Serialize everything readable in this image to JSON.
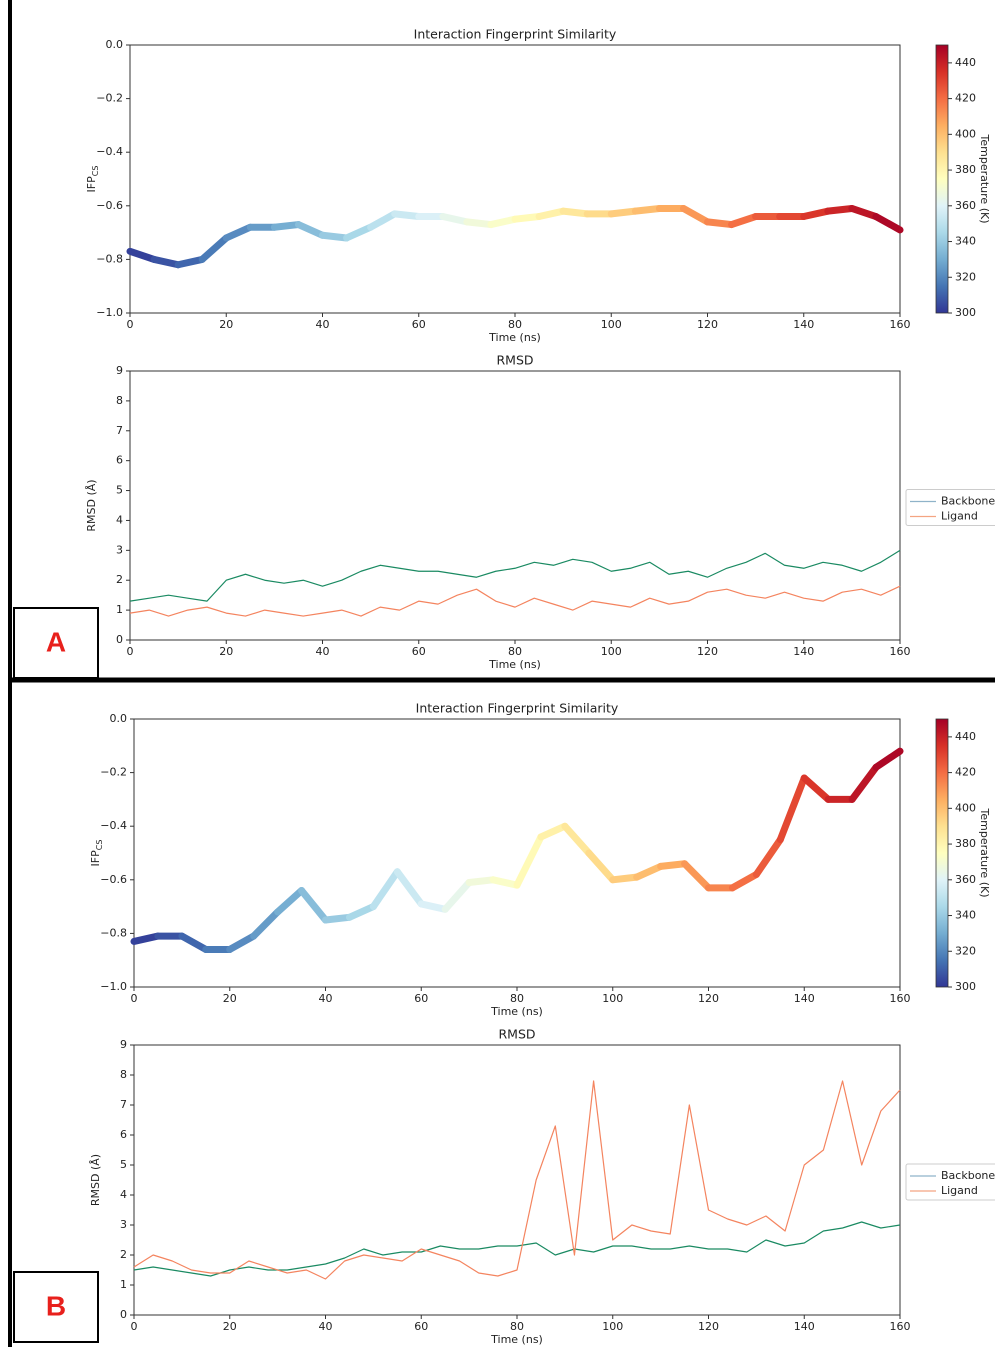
{
  "panel_labels": [
    "A",
    "B"
  ],
  "chart_data": [
    {
      "type": "line",
      "title": "Interaction Fingerprint Similarity",
      "xlabel": "Time (ns)",
      "ylabel": "IFP",
      "ylabel_sub": "CS",
      "x": [
        0,
        5,
        10,
        15,
        20,
        25,
        30,
        35,
        40,
        45,
        50,
        55,
        60,
        65,
        70,
        75,
        80,
        85,
        90,
        95,
        100,
        105,
        110,
        115,
        120,
        125,
        130,
        135,
        140,
        145,
        150,
        155,
        160
      ],
      "values": [
        -0.77,
        -0.8,
        -0.82,
        -0.8,
        -0.72,
        -0.68,
        -0.68,
        -0.67,
        -0.71,
        -0.72,
        -0.68,
        -0.63,
        -0.64,
        -0.64,
        -0.66,
        -0.67,
        -0.65,
        -0.64,
        -0.62,
        -0.63,
        -0.63,
        -0.62,
        -0.61,
        -0.61,
        -0.66,
        -0.67,
        -0.64,
        -0.64,
        -0.64,
        -0.62,
        -0.61,
        -0.64,
        -0.69
      ],
      "z": [
        300,
        305,
        309,
        314,
        319,
        323,
        328,
        333,
        338,
        342,
        347,
        352,
        356,
        361,
        366,
        370,
        375,
        380,
        384,
        389,
        394,
        398,
        403,
        408,
        412,
        417,
        422,
        427,
        431,
        436,
        441,
        445,
        450
      ],
      "xlim": [
        0,
        160
      ],
      "xticks": [
        0,
        20,
        40,
        60,
        80,
        100,
        120,
        140,
        160
      ],
      "ylim": [
        -1,
        0
      ],
      "yticks": [
        {
          "value": -1,
          "label": "−1.0"
        },
        {
          "value": -0.8,
          "label": "−0.8"
        },
        {
          "value": -0.6,
          "label": "−0.6"
        },
        {
          "value": -0.4,
          "label": "−0.4"
        },
        {
          "value": -0.2,
          "label": "−0.2"
        },
        {
          "value": 0,
          "label": "0.0"
        }
      ],
      "colorbar": {
        "label": "Temperature (K)",
        "lim": [
          300,
          450
        ],
        "ticks": [
          300,
          320,
          340,
          360,
          380,
          400,
          420,
          440
        ],
        "colormap": [
          "#313695",
          "#4575b4",
          "#74add1",
          "#abd9e9",
          "#e0f3f8",
          "#ffffbf",
          "#fee090",
          "#fdae61",
          "#f46d43",
          "#d73027",
          "#a50026"
        ]
      }
    },
    {
      "type": "line",
      "title": "RMSD",
      "xlabel": "Time (ns)",
      "ylabel": "RMSD (Å)",
      "legend": "center right",
      "x": [
        0,
        4,
        8,
        12,
        16,
        20,
        24,
        28,
        32,
        36,
        40,
        44,
        48,
        52,
        56,
        60,
        64,
        68,
        72,
        76,
        80,
        84,
        88,
        92,
        96,
        100,
        104,
        108,
        112,
        116,
        120,
        124,
        128,
        132,
        136,
        140,
        144,
        148,
        152,
        156,
        160
      ],
      "series": [
        {
          "name": "Backbone",
          "color": "#1a8a62",
          "legend_color": "#8fb3c9",
          "values": [
            1.3,
            1.4,
            1.5,
            1.4,
            1.3,
            2.0,
            2.2,
            2.0,
            1.9,
            2.0,
            1.8,
            2.0,
            2.3,
            2.5,
            2.4,
            2.3,
            2.3,
            2.2,
            2.1,
            2.3,
            2.4,
            2.6,
            2.5,
            2.7,
            2.6,
            2.3,
            2.4,
            2.6,
            2.2,
            2.3,
            2.1,
            2.4,
            2.6,
            2.9,
            2.5,
            2.4,
            2.6,
            2.5,
            2.3,
            2.6,
            3.0
          ]
        },
        {
          "name": "Ligand",
          "color": "#f4845f",
          "legend_color": "#f4a582",
          "values": [
            0.9,
            1.0,
            0.8,
            1.0,
            1.1,
            0.9,
            0.8,
            1.0,
            0.9,
            0.8,
            0.9,
            1.0,
            0.8,
            1.1,
            1.0,
            1.3,
            1.2,
            1.5,
            1.7,
            1.3,
            1.1,
            1.4,
            1.2,
            1.0,
            1.3,
            1.2,
            1.1,
            1.4,
            1.2,
            1.3,
            1.6,
            1.7,
            1.5,
            1.4,
            1.6,
            1.4,
            1.3,
            1.6,
            1.7,
            1.5,
            1.8
          ]
        }
      ],
      "xlim": [
        0,
        160
      ],
      "xticks": [
        0,
        20,
        40,
        60,
        80,
        100,
        120,
        140,
        160
      ],
      "ylim": [
        0,
        9
      ],
      "yticks": [
        0,
        1,
        2,
        3,
        4,
        5,
        6,
        7,
        8,
        9
      ]
    },
    {
      "type": "line",
      "title": "Interaction Fingerprint Similarity",
      "xlabel": "Time (ns)",
      "ylabel": "IFP",
      "ylabel_sub": "CS",
      "x": [
        0,
        5,
        10,
        15,
        20,
        25,
        30,
        35,
        40,
        45,
        50,
        55,
        60,
        65,
        70,
        75,
        80,
        85,
        90,
        95,
        100,
        105,
        110,
        115,
        120,
        125,
        130,
        135,
        140,
        145,
        150,
        155,
        160
      ],
      "values": [
        -0.83,
        -0.81,
        -0.81,
        -0.86,
        -0.86,
        -0.81,
        -0.72,
        -0.64,
        -0.75,
        -0.74,
        -0.7,
        -0.57,
        -0.69,
        -0.71,
        -0.61,
        -0.6,
        -0.62,
        -0.44,
        -0.4,
        -0.5,
        -0.6,
        -0.59,
        -0.55,
        -0.54,
        -0.63,
        -0.63,
        -0.58,
        -0.45,
        -0.22,
        -0.3,
        -0.3,
        -0.18,
        -0.12
      ],
      "z": [
        300,
        305,
        309,
        314,
        319,
        323,
        328,
        333,
        338,
        342,
        347,
        352,
        356,
        361,
        366,
        370,
        375,
        380,
        384,
        389,
        394,
        398,
        403,
        408,
        412,
        417,
        422,
        427,
        431,
        436,
        441,
        445,
        450
      ],
      "xlim": [
        0,
        160
      ],
      "xticks": [
        0,
        20,
        40,
        60,
        80,
        100,
        120,
        140,
        160
      ],
      "ylim": [
        -1,
        0
      ],
      "yticks": [
        {
          "value": -1,
          "label": "−1.0"
        },
        {
          "value": -0.8,
          "label": "−0.8"
        },
        {
          "value": -0.6,
          "label": "−0.6"
        },
        {
          "value": -0.4,
          "label": "−0.4"
        },
        {
          "value": -0.2,
          "label": "−0.2"
        },
        {
          "value": 0,
          "label": "0.0"
        }
      ],
      "colorbar": {
        "label": "Temperature (K)",
        "lim": [
          300,
          450
        ],
        "ticks": [
          300,
          320,
          340,
          360,
          380,
          400,
          420,
          440
        ],
        "colormap": [
          "#313695",
          "#4575b4",
          "#74add1",
          "#abd9e9",
          "#e0f3f8",
          "#ffffbf",
          "#fee090",
          "#fdae61",
          "#f46d43",
          "#d73027",
          "#a50026"
        ]
      }
    },
    {
      "type": "line",
      "title": "RMSD",
      "xlabel": "Time (ns)",
      "ylabel": "RMSD (Å)",
      "legend": "center right",
      "x": [
        0,
        4,
        8,
        12,
        16,
        20,
        24,
        28,
        32,
        36,
        40,
        44,
        48,
        52,
        56,
        60,
        64,
        68,
        72,
        76,
        80,
        84,
        88,
        92,
        96,
        100,
        104,
        108,
        112,
        116,
        120,
        124,
        128,
        132,
        136,
        140,
        144,
        148,
        152,
        156,
        160
      ],
      "series": [
        {
          "name": "Backbone",
          "color": "#1a8a62",
          "legend_color": "#8fb3c9",
          "values": [
            1.5,
            1.6,
            1.5,
            1.4,
            1.3,
            1.5,
            1.6,
            1.5,
            1.5,
            1.6,
            1.7,
            1.9,
            2.2,
            2.0,
            2.1,
            2.1,
            2.3,
            2.2,
            2.2,
            2.3,
            2.3,
            2.4,
            2.0,
            2.2,
            2.1,
            2.3,
            2.3,
            2.2,
            2.2,
            2.3,
            2.2,
            2.2,
            2.1,
            2.5,
            2.3,
            2.4,
            2.8,
            2.9,
            3.1,
            2.9,
            3.0
          ]
        },
        {
          "name": "Ligand",
          "color": "#f4845f",
          "legend_color": "#f4a582",
          "values": [
            1.6,
            2.0,
            1.8,
            1.5,
            1.4,
            1.4,
            1.8,
            1.6,
            1.4,
            1.5,
            1.2,
            1.8,
            2.0,
            1.9,
            1.8,
            2.2,
            2.0,
            1.8,
            1.4,
            1.3,
            1.5,
            4.5,
            6.3,
            2.0,
            7.8,
            2.5,
            3.0,
            2.8,
            2.7,
            7.0,
            3.5,
            3.2,
            3.0,
            3.3,
            2.8,
            5.0,
            5.5,
            7.8,
            5.0,
            6.8,
            7.5
          ]
        }
      ],
      "xlim": [
        0,
        160
      ],
      "xticks": [
        0,
        20,
        40,
        60,
        80,
        100,
        120,
        140,
        160
      ],
      "ylim": [
        0,
        9
      ],
      "yticks": [
        0,
        1,
        2,
        3,
        4,
        5,
        6,
        7,
        8,
        9
      ]
    }
  ]
}
